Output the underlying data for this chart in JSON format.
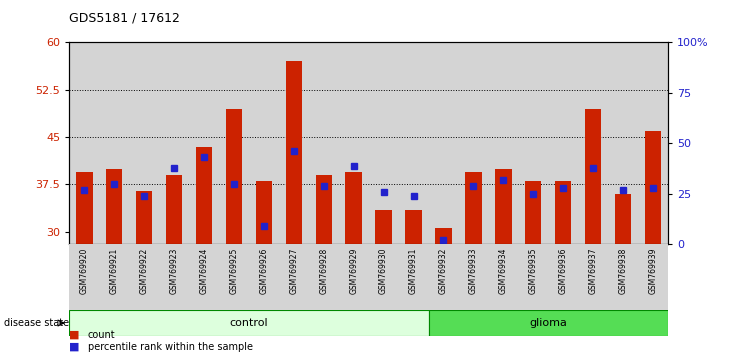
{
  "title": "GDS5181 / 17612",
  "samples": [
    "GSM769920",
    "GSM769921",
    "GSM769922",
    "GSM769923",
    "GSM769924",
    "GSM769925",
    "GSM769926",
    "GSM769927",
    "GSM769928",
    "GSM769929",
    "GSM769930",
    "GSM769931",
    "GSM769932",
    "GSM769933",
    "GSM769934",
    "GSM769935",
    "GSM769936",
    "GSM769937",
    "GSM769938",
    "GSM769939"
  ],
  "red_values": [
    39.5,
    40.0,
    36.5,
    39.0,
    43.5,
    49.5,
    38.0,
    57.0,
    39.0,
    39.5,
    33.5,
    33.5,
    30.5,
    39.5,
    40.0,
    38.0,
    38.0,
    49.5,
    36.0,
    46.0
  ],
  "blue_values": [
    27,
    30,
    24,
    38,
    43,
    30,
    9,
    46,
    29,
    39,
    26,
    24,
    2,
    29,
    32,
    25,
    28,
    38,
    27,
    28
  ],
  "control_count": 12,
  "glioma_count": 8,
  "ylim_left": [
    28,
    60
  ],
  "ylim_right": [
    0,
    100
  ],
  "yticks_left": [
    30,
    37.5,
    45,
    52.5,
    60
  ],
  "yticks_right": [
    0,
    25,
    50,
    75,
    100
  ],
  "ytick_labels_left": [
    "30",
    "37.5",
    "45",
    "52.5",
    "60"
  ],
  "ytick_labels_right": [
    "0",
    "25",
    "50",
    "75",
    "100%"
  ],
  "bar_color": "#cc2200",
  "dot_color": "#2222cc",
  "control_bg_light": "#ddffdd",
  "control_bg_dark": "#55dd55",
  "glioma_bg": "#55dd55",
  "legend_count": "count",
  "legend_pct": "percentile rank within the sample",
  "disease_state_label": "disease state",
  "control_label": "control",
  "glioma_label": "glioma",
  "grid_dotted_values": [
    37.5,
    45,
    52.5
  ],
  "bar_bottom": 28,
  "bar_width": 0.55,
  "col_bg_color": "#d4d4d4",
  "plot_bg": "#ffffff"
}
